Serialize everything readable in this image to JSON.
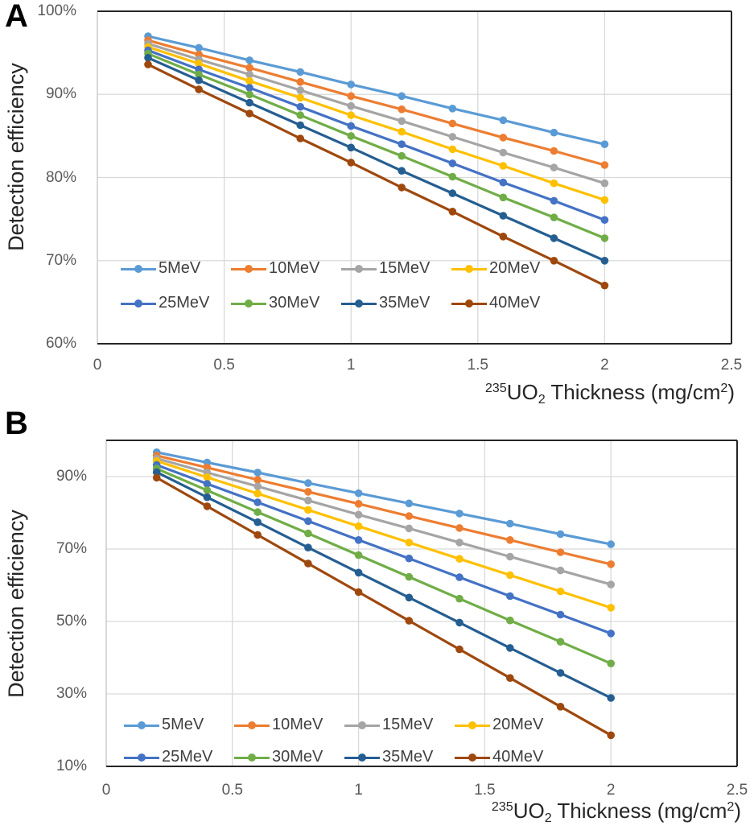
{
  "figure": {
    "ylabel": "Detection efficiency",
    "xlabel_parts": [
      {
        "t": "235",
        "style": "sup"
      },
      {
        "t": "UO",
        "style": "normal"
      },
      {
        "t": "2",
        "style": "sub"
      },
      {
        "t": " Thickness (mg/cm",
        "style": "normal"
      },
      {
        "t": "2",
        "style": "sup"
      },
      {
        "t": ")",
        "style": "normal"
      }
    ]
  },
  "chart_data": [
    {
      "panel": "A",
      "type": "line",
      "ylabel": "Detection efficiency",
      "xlabel": "235UO2 Thickness (mg/cm2)",
      "xlim": [
        0,
        2.5
      ],
      "ylim": [
        60,
        100
      ],
      "xticks": [
        0,
        0.5,
        1,
        1.5,
        2,
        2.5
      ],
      "xtick_labels": [
        "0",
        "0.5",
        "1",
        "1.5",
        "2",
        "2.5"
      ],
      "yticks": [
        100,
        90,
        80,
        70,
        60
      ],
      "ytick_labels": [
        "100%",
        "90%",
        "80%",
        "70%",
        "60%"
      ],
      "grid": true,
      "legend_position": "inside-bottom-left",
      "x": [
        0.2,
        0.4,
        0.6,
        0.8,
        1.0,
        1.2,
        1.4,
        1.6,
        1.8,
        2.0
      ],
      "series": [
        {
          "name": "5MeV",
          "color": "#5B9BD5",
          "values": [
            97.0,
            95.6,
            94.1,
            92.7,
            91.2,
            89.8,
            88.3,
            86.9,
            85.4,
            84.0
          ]
        },
        {
          "name": "10MeV",
          "color": "#ED7D31",
          "values": [
            96.5,
            94.8,
            93.2,
            91.5,
            89.8,
            88.2,
            86.5,
            84.8,
            83.2,
            81.5
          ]
        },
        {
          "name": "15MeV",
          "color": "#A5A5A5",
          "values": [
            96.1,
            94.2,
            92.4,
            90.5,
            88.6,
            86.8,
            84.9,
            83.0,
            81.2,
            79.3
          ]
        },
        {
          "name": "20MeV",
          "color": "#FFC000",
          "values": [
            95.7,
            93.7,
            91.6,
            89.6,
            87.5,
            85.5,
            83.4,
            81.4,
            79.3,
            77.3
          ]
        },
        {
          "name": "25MeV",
          "color": "#4472C4",
          "values": [
            95.3,
            93.0,
            90.8,
            88.5,
            86.2,
            84.0,
            81.7,
            79.4,
            77.2,
            74.9
          ]
        },
        {
          "name": "30MeV",
          "color": "#70AD47",
          "values": [
            94.9,
            92.4,
            90.0,
            87.5,
            85.0,
            82.6,
            80.1,
            77.6,
            75.2,
            72.7
          ]
        },
        {
          "name": "35MeV",
          "color": "#255E91",
          "values": [
            94.4,
            91.7,
            89.0,
            86.3,
            83.6,
            80.8,
            78.1,
            75.4,
            72.7,
            70.0
          ]
        },
        {
          "name": "40MeV",
          "color": "#9E480E",
          "values": [
            93.6,
            90.6,
            87.7,
            84.7,
            81.8,
            78.8,
            75.9,
            72.9,
            70.0,
            67.0
          ]
        }
      ]
    },
    {
      "panel": "B",
      "type": "line",
      "ylabel": "Detection efficiency",
      "xlabel": "235UO2 Thickness (mg/cm2)",
      "xlim": [
        0,
        2.5
      ],
      "ylim": [
        10,
        100
      ],
      "xticks": [
        0,
        0.5,
        1,
        1.5,
        2,
        2.5
      ],
      "xtick_labels": [
        "0",
        "0.5",
        "1",
        "1.5",
        "2",
        "2.5"
      ],
      "yticks": [
        90,
        70,
        50,
        30,
        10
      ],
      "ytick_labels": [
        "90%",
        "70%",
        "50%",
        "30%",
        "10%"
      ],
      "grid": true,
      "legend_position": "inside-bottom-left",
      "x": [
        0.2,
        0.4,
        0.6,
        0.8,
        1.0,
        1.2,
        1.4,
        1.6,
        1.8,
        2.0
      ],
      "series": [
        {
          "name": "5MeV",
          "color": "#5B9BD5",
          "values": [
            96.7,
            93.9,
            91.1,
            88.2,
            85.4,
            82.6,
            79.8,
            77.0,
            74.1,
            71.3
          ]
        },
        {
          "name": "10MeV",
          "color": "#ED7D31",
          "values": [
            95.8,
            92.5,
            89.1,
            85.8,
            82.5,
            79.1,
            75.8,
            72.5,
            69.1,
            65.8
          ]
        },
        {
          "name": "15MeV",
          "color": "#A5A5A5",
          "values": [
            95.0,
            91.1,
            87.3,
            83.4,
            79.5,
            75.7,
            71.8,
            67.9,
            64.1,
            60.2
          ]
        },
        {
          "name": "20MeV",
          "color": "#FFC000",
          "values": [
            94.3,
            89.8,
            85.3,
            80.8,
            76.3,
            71.8,
            67.3,
            62.8,
            58.3,
            53.8
          ]
        },
        {
          "name": "25MeV",
          "color": "#4472C4",
          "values": [
            93.2,
            88.0,
            82.9,
            77.7,
            72.5,
            67.4,
            62.2,
            57.0,
            51.9,
            46.7
          ]
        },
        {
          "name": "30MeV",
          "color": "#70AD47",
          "values": [
            92.2,
            86.2,
            80.2,
            74.3,
            68.3,
            62.3,
            56.3,
            50.3,
            44.4,
            38.4
          ]
        },
        {
          "name": "35MeV",
          "color": "#255E91",
          "values": [
            91.2,
            84.3,
            77.4,
            70.4,
            63.5,
            56.6,
            49.7,
            42.7,
            35.8,
            28.9
          ]
        },
        {
          "name": "40MeV",
          "color": "#9E480E",
          "values": [
            89.7,
            81.8,
            73.9,
            66.0,
            58.1,
            50.2,
            42.3,
            34.4,
            26.5,
            18.6
          ]
        }
      ]
    }
  ]
}
